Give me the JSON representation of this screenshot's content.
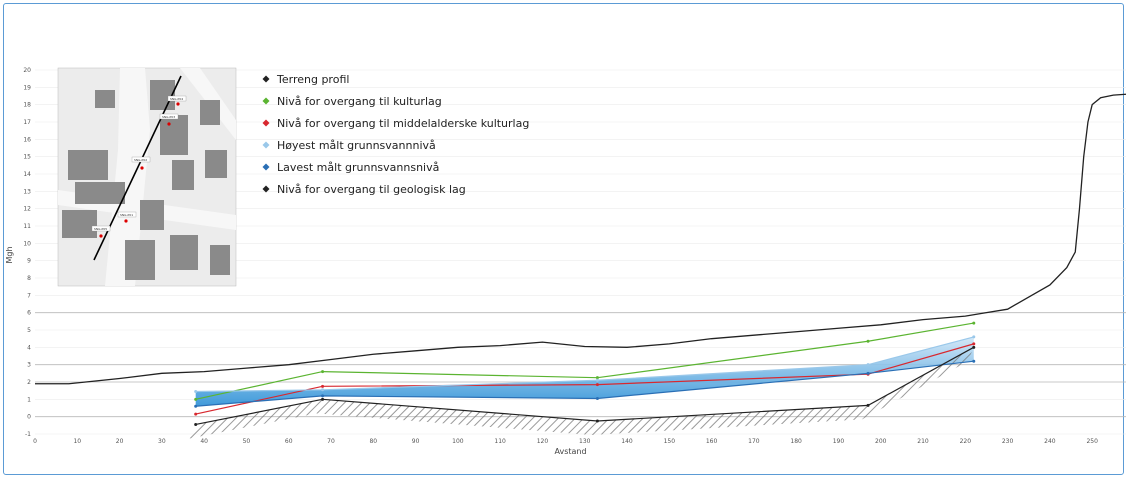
{
  "chart_data": {
    "type": "line",
    "xlabel": "Avstand",
    "ylabel": "Mgh",
    "xlim": [
      0,
      258
    ],
    "ylim": [
      -1,
      20
    ],
    "x_ticks": [
      0,
      10,
      20,
      30,
      40,
      50,
      60,
      70,
      80,
      90,
      100,
      110,
      120,
      130,
      140,
      150,
      160,
      170,
      180,
      190,
      200,
      210,
      220,
      230,
      240,
      250
    ],
    "y_ticks": [
      -1,
      0,
      1,
      2,
      3,
      4,
      5,
      6,
      7,
      8,
      9,
      10,
      11,
      12,
      13,
      14,
      15,
      16,
      17,
      18,
      19,
      20
    ],
    "series": [
      {
        "name": "Terreng profil",
        "color": "#222222",
        "x": [
          0,
          8,
          12,
          20,
          30,
          40,
          50,
          60,
          70,
          80,
          90,
          100,
          110,
          120,
          130,
          140,
          150,
          160,
          170,
          180,
          190,
          200,
          210,
          220,
          225,
          230,
          235,
          240,
          244,
          246,
          247,
          248,
          249,
          250,
          252,
          255,
          258
        ],
        "y": [
          1.9,
          1.9,
          2.0,
          2.2,
          2.5,
          2.6,
          2.8,
          3.0,
          3.3,
          3.6,
          3.8,
          4.0,
          4.1,
          4.3,
          4.05,
          4.0,
          4.2,
          4.5,
          4.7,
          4.9,
          5.1,
          5.3,
          5.6,
          5.8,
          6.0,
          6.2,
          6.9,
          7.6,
          8.6,
          9.5,
          12.0,
          15.0,
          17.0,
          18.0,
          18.4,
          18.55,
          18.6
        ]
      },
      {
        "name": "Nivå for overgang til kulturlag",
        "color": "#5bb431",
        "x": [
          38,
          68,
          133,
          197,
          222
        ],
        "y": [
          1.0,
          2.6,
          2.25,
          4.35,
          5.4
        ]
      },
      {
        "name": "Nivå for overgang til middelalderske kulturlag",
        "color": "#d8282f",
        "x": [
          38,
          68,
          133,
          197,
          222
        ],
        "y": [
          0.15,
          1.75,
          1.85,
          2.45,
          4.2
        ]
      },
      {
        "name": "Høyest målt grunnsvannnivå",
        "color": "#9ac8ea",
        "x": [
          38,
          68,
          133,
          197,
          222
        ],
        "y": [
          1.45,
          1.55,
          2.1,
          3.0,
          4.6
        ]
      },
      {
        "name": "Lavest målt grunnsvannsnivå",
        "color": "#2a6fb5",
        "x": [
          38,
          68,
          133,
          197,
          222
        ],
        "y": [
          0.6,
          1.2,
          1.05,
          2.5,
          3.2
        ]
      },
      {
        "name": "Nivå for overgang til geologisk lag",
        "color": "#222222",
        "x": [
          38,
          68,
          133,
          197,
          222
        ],
        "y": [
          -0.45,
          1.0,
          -0.25,
          0.65,
          4.0
        ]
      }
    ],
    "legend_placement": "top-left",
    "grid": true
  },
  "inset_map": {
    "icon": "map-inset",
    "labels": [
      "SNG-P04",
      "SNG-P03",
      "SNG-P02",
      "SNG-P01",
      "SNG-P05"
    ]
  }
}
